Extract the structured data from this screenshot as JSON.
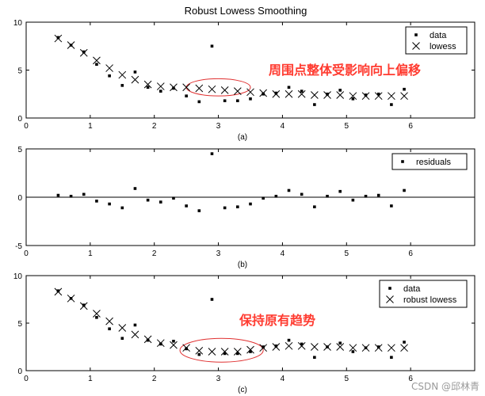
{
  "figure": {
    "title": "Robust Lowess Smoothing",
    "watermark": "CSDN @邱林青"
  },
  "annotations": [
    {
      "text": "周围点整体受影响向上偏移",
      "color": "#ff3b30",
      "panel": 0
    },
    {
      "text": "保持原有趋势",
      "color": "#ff3b30",
      "panel": 2
    }
  ],
  "chart_data": [
    {
      "type": "scatter",
      "caption": "(a)",
      "xlim": [
        0,
        7
      ],
      "ylim": [
        0,
        10
      ],
      "xticks": [
        0,
        1,
        2,
        3,
        4,
        5,
        6
      ],
      "yticks": [
        0,
        5,
        10
      ],
      "legend": {
        "placement": "top-right",
        "entries": [
          "data",
          "lowess"
        ]
      },
      "highlight": {
        "x": [
          2.5,
          3.5
        ],
        "y": [
          2.3,
          4.1
        ],
        "color": "#e03030"
      },
      "series": [
        {
          "name": "data",
          "marker": "dot",
          "x": [
            0.5,
            0.7,
            0.9,
            1.1,
            1.3,
            1.5,
            1.7,
            1.9,
            2.1,
            2.3,
            2.5,
            2.7,
            2.9,
            3.1,
            3.3,
            3.5,
            3.7,
            3.9,
            4.1,
            4.3,
            4.5,
            4.7,
            4.9,
            5.1,
            5.3,
            5.5,
            5.7,
            5.9
          ],
          "y": [
            8.4,
            7.6,
            6.9,
            5.6,
            4.4,
            3.4,
            4.8,
            3.2,
            2.8,
            3.1,
            2.3,
            1.7,
            7.5,
            1.8,
            1.8,
            2.0,
            2.5,
            2.6,
            3.2,
            2.8,
            1.4,
            2.5,
            2.9,
            2.0,
            2.4,
            2.5,
            1.4,
            3.0
          ]
        },
        {
          "name": "lowess",
          "marker": "x",
          "x": [
            0.5,
            0.7,
            0.9,
            1.1,
            1.3,
            1.5,
            1.7,
            1.9,
            2.1,
            2.3,
            2.5,
            2.7,
            2.9,
            3.1,
            3.3,
            3.5,
            3.7,
            3.9,
            4.1,
            4.3,
            4.5,
            4.7,
            4.9,
            5.1,
            5.3,
            5.5,
            5.7,
            5.9
          ],
          "y": [
            8.3,
            7.6,
            6.8,
            6.0,
            5.2,
            4.5,
            4.0,
            3.5,
            3.3,
            3.2,
            3.2,
            3.1,
            3.0,
            2.9,
            2.8,
            2.7,
            2.6,
            2.5,
            2.5,
            2.5,
            2.4,
            2.4,
            2.4,
            2.3,
            2.3,
            2.3,
            2.3,
            2.3
          ]
        }
      ]
    },
    {
      "type": "scatter",
      "caption": "(b)",
      "xlim": [
        0,
        7
      ],
      "ylim": [
        -5,
        5
      ],
      "xticks": [
        0,
        1,
        2,
        3,
        4,
        5,
        6
      ],
      "yticks": [
        -5,
        0,
        5
      ],
      "zero_line": true,
      "legend": {
        "placement": "top-right",
        "entries": [
          "residuals"
        ]
      },
      "series": [
        {
          "name": "residuals",
          "marker": "dot",
          "x": [
            0.5,
            0.7,
            0.9,
            1.1,
            1.3,
            1.5,
            1.7,
            1.9,
            2.1,
            2.3,
            2.5,
            2.7,
            2.9,
            3.1,
            3.3,
            3.5,
            3.7,
            3.9,
            4.1,
            4.3,
            4.5,
            4.7,
            4.9,
            5.1,
            5.3,
            5.5,
            5.7,
            5.9
          ],
          "y": [
            0.2,
            0.1,
            0.3,
            -0.4,
            -0.7,
            -1.1,
            0.9,
            -0.3,
            -0.5,
            -0.1,
            -0.9,
            -1.4,
            4.5,
            -1.1,
            -1.0,
            -0.7,
            -0.1,
            0.1,
            0.7,
            0.3,
            -1.0,
            0.1,
            0.6,
            -0.3,
            0.1,
            0.2,
            -0.9,
            0.7
          ]
        }
      ]
    },
    {
      "type": "scatter",
      "caption": "(c)",
      "xlim": [
        0,
        7
      ],
      "ylim": [
        0,
        10
      ],
      "xticks": [
        0,
        1,
        2,
        3,
        4,
        5,
        6
      ],
      "yticks": [
        0,
        5,
        10
      ],
      "legend": {
        "placement": "top-right",
        "entries": [
          "data",
          "robust lowess"
        ]
      },
      "highlight": {
        "x": [
          2.4,
          3.7
        ],
        "y": [
          0.9,
          3.4
        ],
        "color": "#e03030"
      },
      "series": [
        {
          "name": "data",
          "marker": "dot",
          "x": [
            0.5,
            0.7,
            0.9,
            1.1,
            1.3,
            1.5,
            1.7,
            1.9,
            2.1,
            2.3,
            2.5,
            2.7,
            2.9,
            3.1,
            3.3,
            3.5,
            3.7,
            3.9,
            4.1,
            4.3,
            4.5,
            4.7,
            4.9,
            5.1,
            5.3,
            5.5,
            5.7,
            5.9
          ],
          "y": [
            8.4,
            7.6,
            6.9,
            5.6,
            4.4,
            3.4,
            4.8,
            3.2,
            2.8,
            3.1,
            2.3,
            1.7,
            7.5,
            1.8,
            1.8,
            2.0,
            2.5,
            2.6,
            3.2,
            2.8,
            1.4,
            2.5,
            2.9,
            2.0,
            2.4,
            2.5,
            1.4,
            3.0
          ]
        },
        {
          "name": "robust lowess",
          "marker": "x",
          "x": [
            0.5,
            0.7,
            0.9,
            1.1,
            1.3,
            1.5,
            1.7,
            1.9,
            2.1,
            2.3,
            2.5,
            2.7,
            2.9,
            3.1,
            3.3,
            3.5,
            3.7,
            3.9,
            4.1,
            4.3,
            4.5,
            4.7,
            4.9,
            5.1,
            5.3,
            5.5,
            5.7,
            5.9
          ],
          "y": [
            8.3,
            7.6,
            6.8,
            6.0,
            5.2,
            4.5,
            3.8,
            3.3,
            2.9,
            2.7,
            2.4,
            2.1,
            2.0,
            2.0,
            2.0,
            2.2,
            2.4,
            2.5,
            2.6,
            2.6,
            2.5,
            2.5,
            2.5,
            2.4,
            2.4,
            2.4,
            2.4,
            2.4
          ]
        }
      ]
    }
  ]
}
